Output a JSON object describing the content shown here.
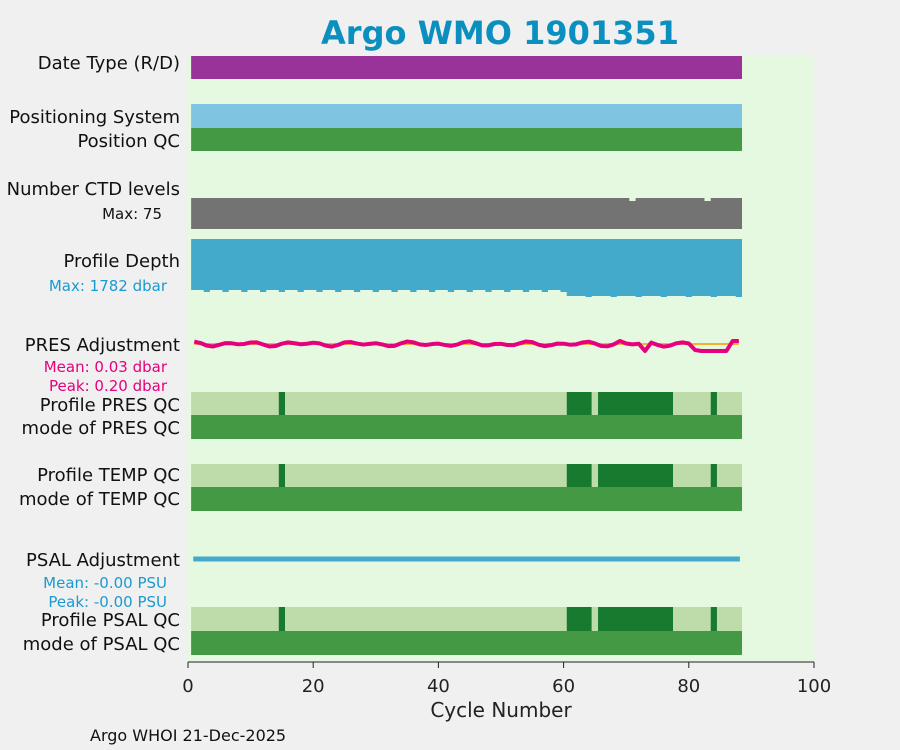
{
  "chart_data": {
    "type": "bar",
    "title": "Argo WMO 1901351",
    "xlabel": "Cycle Number",
    "xlim": [
      0,
      100
    ],
    "x_ticks": [
      "0",
      "20",
      "40",
      "60",
      "80",
      "100"
    ],
    "cycles_first": 1,
    "cycles_last": 88,
    "rows": {
      "date_type": {
        "label": "Date Type (R/D)",
        "color": "#993399"
      },
      "positioning_system": {
        "label": "Positioning System",
        "color": "#7fc4e0"
      },
      "position_qc": {
        "label": "Position QC",
        "color": "#449944"
      },
      "ctd_levels": {
        "label": "Number CTD levels",
        "max_label": "Max: 75",
        "color": "#737373",
        "max": 75,
        "dips": [
          71,
          83
        ]
      },
      "profile_depth": {
        "label": "Profile Depth",
        "max_label": "Max: 1782 dbar",
        "color": "#44aacc",
        "max_dbar": 1782
      },
      "pres_adjustment": {
        "label": "PRES Adjustment",
        "mean_label": "Mean: 0.03 dbar",
        "peak_label": "Peak: 0.20 dbar",
        "color": "#e6007e",
        "mean_dbar": 0.03,
        "peak_dbar": 0.2
      },
      "profile_pres_qc": {
        "label": "Profile PRES QC"
      },
      "mode_pres_qc": {
        "label": "mode of PRES QC",
        "color": "#449944"
      },
      "profile_temp_qc": {
        "label": "Profile TEMP QC"
      },
      "mode_temp_qc": {
        "label": "mode of TEMP QC",
        "color": "#449944"
      },
      "psal_adjustment": {
        "label": "PSAL Adjustment",
        "mean_label": "Mean: -0.00 PSU",
        "peak_label": "Peak: -0.00 PSU",
        "color": "#44aacc",
        "mean_psu": -0.0,
        "peak_psu": -0.0
      },
      "profile_psal_qc": {
        "label": "Profile PSAL QC"
      },
      "mode_psal_qc": {
        "label": "mode of PSAL QC",
        "color": "#449944"
      }
    },
    "profile_qc_segments": [
      {
        "from": 1,
        "to": 14,
        "grade": "B"
      },
      {
        "from": 15,
        "to": 15,
        "grade": "A"
      },
      {
        "from": 16,
        "to": 60,
        "grade": "B"
      },
      {
        "from": 61,
        "to": 64,
        "grade": "A"
      },
      {
        "from": 65,
        "to": 65,
        "grade": "B"
      },
      {
        "from": 66,
        "to": 77,
        "grade": "A"
      },
      {
        "from": 78,
        "to": 83,
        "grade": "B"
      },
      {
        "from": 84,
        "to": 84,
        "grade": "A"
      },
      {
        "from": 85,
        "to": 88,
        "grade": "B"
      }
    ],
    "qc_colors": {
      "A": "#177a2e",
      "B": "#bedbaa"
    }
  },
  "footer": "Argo WHOI 21-Dec-2025",
  "colors": {
    "plot_bg": "#e5f8e0",
    "fig_bg": "#f0f0f0",
    "title": "#0b8fbf"
  }
}
